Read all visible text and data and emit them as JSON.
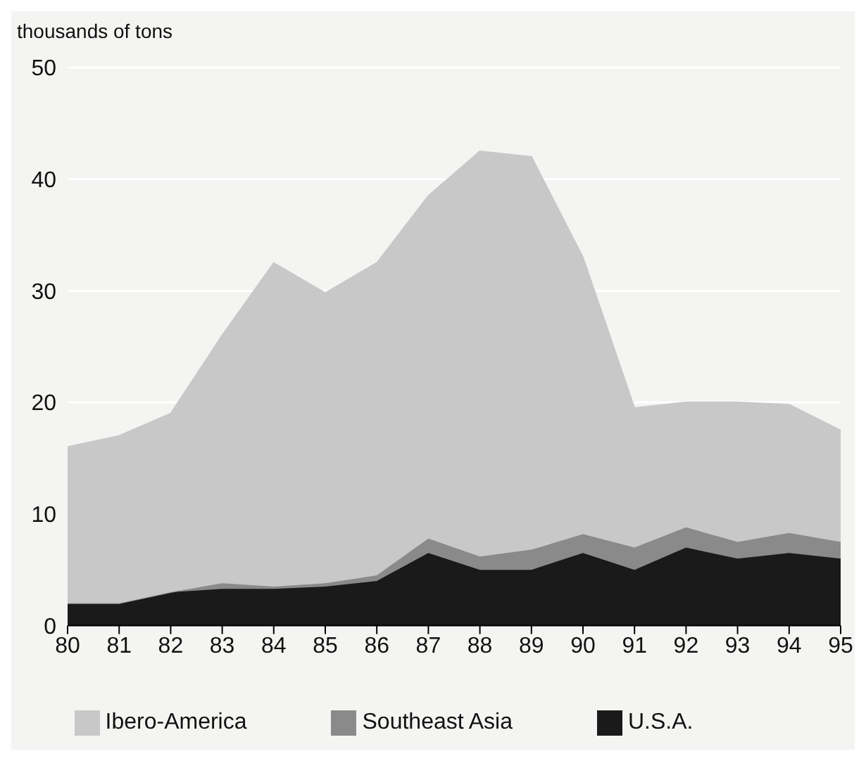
{
  "chart_data": {
    "type": "area",
    "ylabel": "thousands of tons",
    "stacked": true,
    "categories": [
      "80",
      "81",
      "82",
      "83",
      "84",
      "85",
      "86",
      "87",
      "88",
      "89",
      "90",
      "91",
      "92",
      "93",
      "94",
      "95"
    ],
    "series": [
      {
        "name": "U.S.A.",
        "color": "#1a1a1a",
        "values": [
          2,
          2,
          3,
          3.3,
          3.3,
          3.5,
          4,
          6.5,
          5,
          5,
          6.5,
          5,
          7,
          6,
          6.5,
          6
        ]
      },
      {
        "name": "Southeast Asia",
        "color": "#8a8a8a",
        "values": [
          0,
          0,
          0,
          0.5,
          0.2,
          0.3,
          0.5,
          1.3,
          1.2,
          1.8,
          1.7,
          2,
          1.8,
          1.5,
          1.8,
          1.5
        ]
      },
      {
        "name": "Ibero-America",
        "color": "#c8c8c8",
        "values": [
          14,
          15,
          16,
          22.2,
          29,
          26,
          28,
          30.7,
          36.3,
          35.2,
          24.8,
          12.5,
          11.2,
          12.5,
          11.5,
          10
        ]
      }
    ],
    "ylim": [
      0,
      50
    ],
    "yticks": [
      0,
      10,
      20,
      30,
      40,
      50
    ],
    "grid": "y",
    "legend": "bottom"
  }
}
